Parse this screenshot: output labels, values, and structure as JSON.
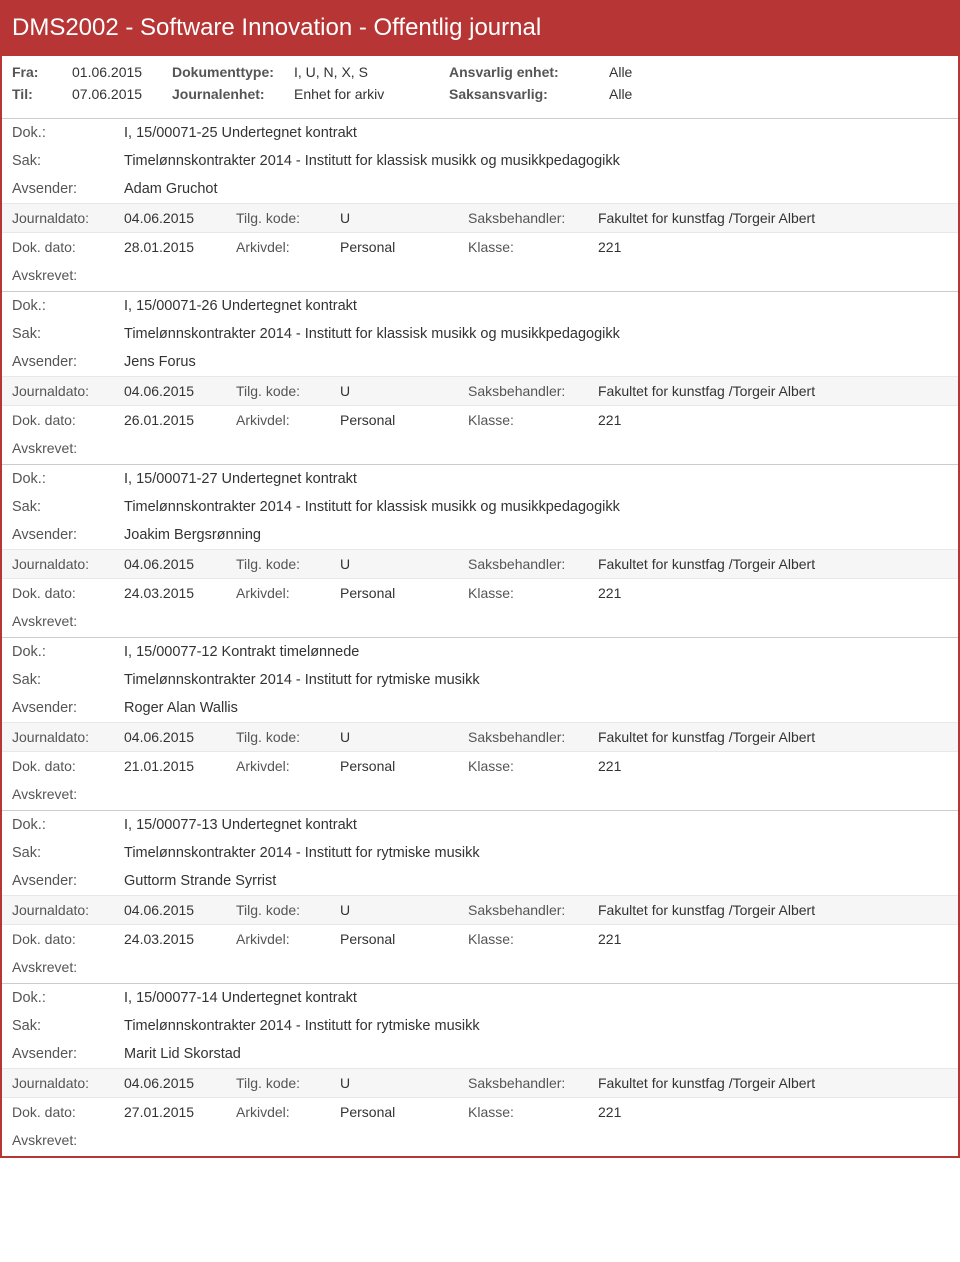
{
  "header": "DMS2002 - Software Innovation - Offentlig journal",
  "filters": {
    "row1": {
      "lab1": "Fra:",
      "val1": "01.06.2015",
      "lab2": "Dokumenttype:",
      "val2": "I, U, N, X, S",
      "lab3": "Ansvarlig enhet:",
      "val3": "Alle"
    },
    "row2": {
      "lab1": "Til:",
      "val1": "07.06.2015",
      "lab2": "Journalenhet:",
      "val2": "Enhet for arkiv",
      "lab3": "Saksansvarlig:",
      "val3": "Alle"
    }
  },
  "labels": {
    "dok": "Dok.:",
    "sak": "Sak:",
    "avsender": "Avsender:",
    "journaldato": "Journaldato:",
    "tilgkode": "Tilg. kode:",
    "saksbehandler": "Saksbehandler:",
    "dokdato": "Dok. dato:",
    "arkivdel": "Arkivdel:",
    "klasse": "Klasse:",
    "avskrevet": "Avskrevet:"
  },
  "entries": [
    {
      "dok": "I, 15/00071-25 Undertegnet kontrakt",
      "sak": "Timelønnskontrakter 2014 - Institutt for klassisk musikk og musikkpedagogikk",
      "avsender": "Adam Gruchot",
      "journaldato": "04.06.2015",
      "tilgkode": "U",
      "saksbehandler": "Fakultet for kunstfag /Torgeir Albert",
      "dokdato": "28.01.2015",
      "arkivdel": "Personal",
      "klasse": "221"
    },
    {
      "dok": "I, 15/00071-26 Undertegnet kontrakt",
      "sak": "Timelønnskontrakter 2014 - Institutt for klassisk musikk og musikkpedagogikk",
      "avsender": "Jens Forus",
      "journaldato": "04.06.2015",
      "tilgkode": "U",
      "saksbehandler": "Fakultet for kunstfag /Torgeir Albert",
      "dokdato": "26.01.2015",
      "arkivdel": "Personal",
      "klasse": "221"
    },
    {
      "dok": "I, 15/00071-27 Undertegnet kontrakt",
      "sak": "Timelønnskontrakter 2014 - Institutt for klassisk musikk og musikkpedagogikk",
      "avsender": "Joakim Bergsrønning",
      "journaldato": "04.06.2015",
      "tilgkode": "U",
      "saksbehandler": "Fakultet for kunstfag /Torgeir Albert",
      "dokdato": "24.03.2015",
      "arkivdel": "Personal",
      "klasse": "221"
    },
    {
      "dok": "I, 15/00077-12 Kontrakt timelønnede",
      "sak": "Timelønnskontrakter 2014 - Institutt for rytmiske musikk",
      "avsender": "Roger Alan Wallis",
      "journaldato": "04.06.2015",
      "tilgkode": "U",
      "saksbehandler": "Fakultet for kunstfag /Torgeir Albert",
      "dokdato": "21.01.2015",
      "arkivdel": "Personal",
      "klasse": "221"
    },
    {
      "dok": "I, 15/00077-13 Undertegnet kontrakt",
      "sak": "Timelønnskontrakter 2014 - Institutt for rytmiske musikk",
      "avsender": "Guttorm Strande Syrrist",
      "journaldato": "04.06.2015",
      "tilgkode": "U",
      "saksbehandler": "Fakultet for kunstfag /Torgeir Albert",
      "dokdato": "24.03.2015",
      "arkivdel": "Personal",
      "klasse": "221"
    },
    {
      "dok": "I, 15/00077-14 Undertegnet kontrakt",
      "sak": "Timelønnskontrakter 2014 - Institutt for rytmiske musikk",
      "avsender": "Marit Lid Skorstad",
      "journaldato": "04.06.2015",
      "tilgkode": "U",
      "saksbehandler": "Fakultet for kunstfag /Torgeir Albert",
      "dokdato": "27.01.2015",
      "arkivdel": "Personal",
      "klasse": "221"
    }
  ]
}
